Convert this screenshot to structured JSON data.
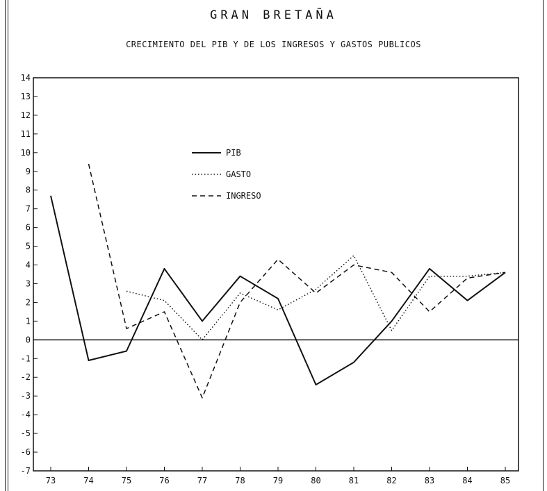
{
  "chart_data": {
    "type": "line",
    "title": "GRAN BRETAÑA",
    "subtitle": "CRECIMIENTO DEL PIB Y DE LOS INGRESOS Y GASTOS PUBLICOS",
    "xlabel": "",
    "ylabel": "",
    "categories": [
      "73",
      "74",
      "75",
      "76",
      "77",
      "78",
      "79",
      "80",
      "81",
      "82",
      "83",
      "84",
      "85"
    ],
    "ylim": [
      -7,
      14
    ],
    "yticks": [
      "-7",
      "-6",
      "-5",
      "-4",
      "-3",
      "-2",
      "-1",
      "0",
      "1",
      "2",
      "3",
      "4",
      "5",
      "6",
      "7",
      "8",
      "9",
      "10",
      "11",
      "12",
      "13",
      "14"
    ],
    "grid": false,
    "zero_line": true,
    "legend_position": "upper-center",
    "series": [
      {
        "name": "PIB",
        "style": "solid",
        "values": [
          7.7,
          -1.1,
          -0.6,
          3.8,
          1.0,
          3.4,
          2.2,
          -2.4,
          -1.2,
          1.0,
          3.8,
          2.1,
          3.6
        ]
      },
      {
        "name": "GASTO",
        "style": "dotted",
        "values": [
          null,
          null,
          2.6,
          2.1,
          0.0,
          2.5,
          1.6,
          2.7,
          4.5,
          0.5,
          3.4,
          3.4,
          3.6
        ]
      },
      {
        "name": "INGRESO",
        "style": "dashed",
        "values": [
          null,
          9.4,
          0.6,
          1.5,
          -3.1,
          2.0,
          4.3,
          2.5,
          4.0,
          3.6,
          1.5,
          3.3,
          3.6
        ]
      }
    ]
  }
}
